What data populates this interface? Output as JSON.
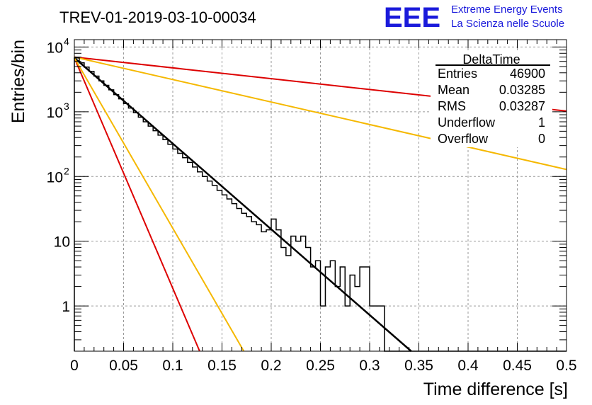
{
  "chart_data": {
    "type": "histogram",
    "title": "TREV-01-2019-03-10-00034",
    "xlabel": "Time difference [s]",
    "ylabel": "Entries/bin",
    "xlim": [
      0,
      0.5
    ],
    "ylim": [
      0.2,
      13000
    ],
    "yscale": "log",
    "grid": true,
    "x_ticks": [
      {
        "value": 0,
        "label": "0"
      },
      {
        "value": 0.05,
        "label": "0.05"
      },
      {
        "value": 0.1,
        "label": "0.1"
      },
      {
        "value": 0.15,
        "label": "0.15"
      },
      {
        "value": 0.2,
        "label": "0.2"
      },
      {
        "value": 0.25,
        "label": "0.25"
      },
      {
        "value": 0.3,
        "label": "0.3"
      },
      {
        "value": 0.35,
        "label": "0.35"
      },
      {
        "value": 0.4,
        "label": "0.4"
      },
      {
        "value": 0.45,
        "label": "0.45"
      },
      {
        "value": 0.5,
        "label": "0.5"
      }
    ],
    "y_ticks": [
      {
        "value": 1,
        "label": "1"
      },
      {
        "value": 10,
        "label": "10"
      },
      {
        "value": 100,
        "label": "10",
        "exp": "2"
      },
      {
        "value": 1000,
        "label": "10",
        "exp": "3"
      },
      {
        "value": 10000,
        "label": "10",
        "exp": "4"
      }
    ],
    "histogram": {
      "name": "DeltaTime",
      "bin_width": 0.005,
      "x_start": 0,
      "color": "#000000",
      "counts": [
        6800,
        5700,
        4900,
        4200,
        3550,
        3000,
        2560,
        2180,
        1840,
        1580,
        1340,
        1140,
        965,
        825,
        700,
        600,
        510,
        435,
        370,
        315,
        265,
        228,
        195,
        165,
        140,
        118,
        100,
        85,
        73,
        61,
        52,
        45,
        38,
        32,
        27,
        24,
        20,
        18,
        14,
        15,
        22,
        15,
        8,
        6,
        12,
        10,
        12,
        8,
        4,
        5,
        1,
        4,
        5,
        2,
        4,
        1,
        3,
        2,
        4,
        4,
        1,
        1,
        1,
        0,
        0,
        0,
        0,
        0,
        0,
        0,
        0,
        0,
        0,
        0,
        0,
        0,
        0,
        0,
        0,
        0,
        0,
        0,
        0,
        0,
        0,
        0,
        0,
        0,
        0,
        0,
        0,
        0,
        0,
        0,
        0,
        0,
        0,
        0,
        0,
        0
      ]
    },
    "curves": [
      {
        "color": "#000000",
        "N0": 6800,
        "tau": 0.0328,
        "x_end": 0.35
      },
      {
        "color": "#dd0000",
        "N0": 6800,
        "tau": 0.0122,
        "x_end": 0.5
      },
      {
        "color": "#f5b800",
        "N0": 6800,
        "tau": 0.0165,
        "x_end": 0.5
      },
      {
        "color": "#dd0000",
        "N0": 7000,
        "tau": 0.26,
        "x_end": 0.5
      },
      {
        "color": "#f5b800",
        "N0": 7000,
        "tau": 0.125,
        "x_end": 0.5
      }
    ],
    "stats_box": {
      "title": "DeltaTime",
      "rows": [
        {
          "label": "Entries",
          "value": "46900"
        },
        {
          "label": "Mean",
          "value": "0.03285"
        },
        {
          "label": "RMS",
          "value": "0.03287"
        },
        {
          "label": "Underflow",
          "value": "1"
        },
        {
          "label": "Overflow",
          "value": "0"
        }
      ]
    }
  },
  "logo": {
    "mark": "EEE",
    "line1": "Extreme Energy Events",
    "line2": "La Scienza nelle Scuole",
    "color": "#1a1adb"
  }
}
